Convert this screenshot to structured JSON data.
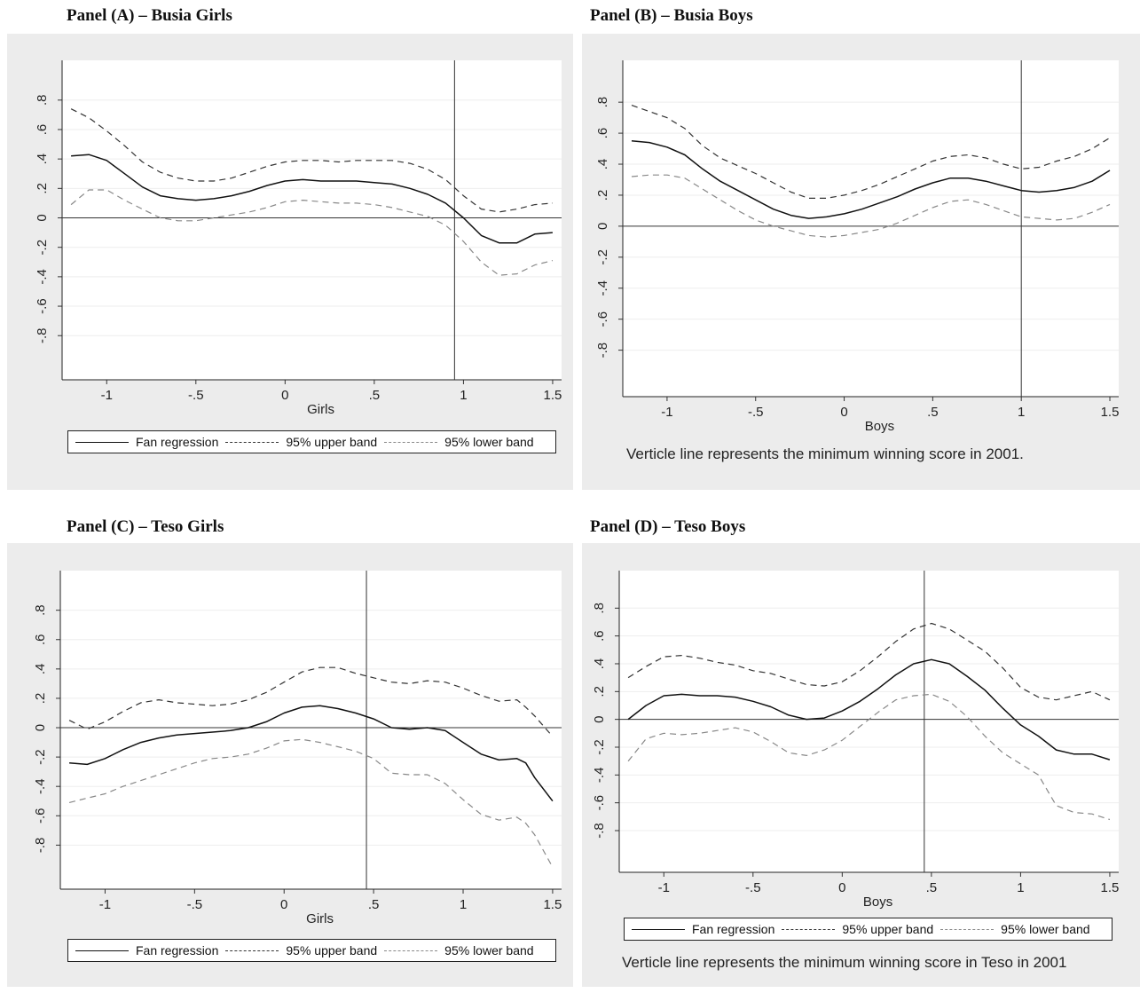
{
  "legend": {
    "fan": "Fan regression",
    "upper": "95% upper band",
    "lower": "95% lower band"
  },
  "notes": {
    "busia": "Verticle line represents the minimum winning score in 2001.",
    "teso": "Verticle line represents the minimum winning score in Teso in 2001"
  },
  "chart_data": [
    {
      "type": "line",
      "title": "Panel (A) – Busia Girls",
      "xlabel": "Girls",
      "xlim": [
        -1.25,
        1.55
      ],
      "ylim": [
        -1.1,
        1.07
      ],
      "x_ticks": [
        "-1",
        "-.5",
        "0",
        ".5",
        "1",
        "1.5"
      ],
      "y_ticks": [
        "-.8",
        "-.6",
        "-.4",
        "-.2",
        "0",
        ".2",
        ".4",
        ".6",
        ".8"
      ],
      "vline": 0.95,
      "series": [
        {
          "name": "Fan regression",
          "x": [
            -1.2,
            -1.1,
            -1.0,
            -0.9,
            -0.8,
            -0.7,
            -0.6,
            -0.5,
            -0.4,
            -0.3,
            -0.2,
            -0.1,
            0.0,
            0.1,
            0.2,
            0.3,
            0.4,
            0.5,
            0.6,
            0.7,
            0.8,
            0.9,
            1.0,
            1.1,
            1.2,
            1.3,
            1.4,
            1.5
          ],
          "y": [
            0.42,
            0.43,
            0.39,
            0.3,
            0.21,
            0.15,
            0.13,
            0.12,
            0.13,
            0.15,
            0.18,
            0.22,
            0.25,
            0.26,
            0.25,
            0.25,
            0.25,
            0.24,
            0.23,
            0.2,
            0.16,
            0.1,
            0.0,
            -0.12,
            -0.17,
            -0.17,
            -0.11,
            -0.1
          ]
        },
        {
          "name": "95% upper band",
          "x": [
            -1.2,
            -1.1,
            -1.0,
            -0.9,
            -0.8,
            -0.7,
            -0.6,
            -0.5,
            -0.4,
            -0.3,
            -0.2,
            -0.1,
            0.0,
            0.1,
            0.2,
            0.3,
            0.4,
            0.5,
            0.6,
            0.7,
            0.8,
            0.9,
            1.0,
            1.1,
            1.2,
            1.3,
            1.4,
            1.5
          ],
          "y": [
            0.74,
            0.68,
            0.59,
            0.49,
            0.38,
            0.31,
            0.27,
            0.25,
            0.25,
            0.27,
            0.31,
            0.35,
            0.38,
            0.39,
            0.39,
            0.38,
            0.39,
            0.39,
            0.39,
            0.37,
            0.33,
            0.26,
            0.15,
            0.06,
            0.04,
            0.06,
            0.09,
            0.1
          ]
        },
        {
          "name": "95% lower band",
          "x": [
            -1.2,
            -1.1,
            -1.0,
            -0.9,
            -0.8,
            -0.7,
            -0.6,
            -0.5,
            -0.4,
            -0.3,
            -0.2,
            -0.1,
            0.0,
            0.1,
            0.2,
            0.3,
            0.4,
            0.5,
            0.6,
            0.7,
            0.8,
            0.9,
            1.0,
            1.1,
            1.2,
            1.3,
            1.4,
            1.5
          ],
          "y": [
            0.09,
            0.19,
            0.19,
            0.12,
            0.06,
            0.0,
            -0.02,
            -0.02,
            0.0,
            0.02,
            0.04,
            0.07,
            0.11,
            0.12,
            0.11,
            0.1,
            0.1,
            0.09,
            0.07,
            0.04,
            0.01,
            -0.05,
            -0.16,
            -0.3,
            -0.39,
            -0.38,
            -0.32,
            -0.29
          ]
        }
      ]
    },
    {
      "type": "line",
      "title": "Panel (B) – Busia Boys",
      "xlabel": "Boys",
      "xlim": [
        -1.25,
        1.55
      ],
      "ylim": [
        -1.1,
        1.07
      ],
      "x_ticks": [
        "-1",
        "-.5",
        "0",
        ".5",
        "1",
        "1.5"
      ],
      "y_ticks": [
        "-.8",
        "-.6",
        "-.4",
        "-.2",
        "0",
        ".2",
        ".4",
        ".6",
        ".8"
      ],
      "vline": 1.0,
      "series": [
        {
          "name": "Fan regression",
          "x": [
            -1.2,
            -1.1,
            -1.0,
            -0.9,
            -0.8,
            -0.7,
            -0.6,
            -0.5,
            -0.4,
            -0.3,
            -0.2,
            -0.1,
            0.0,
            0.1,
            0.2,
            0.3,
            0.4,
            0.5,
            0.6,
            0.7,
            0.8,
            0.9,
            1.0,
            1.1,
            1.2,
            1.3,
            1.4,
            1.5
          ],
          "y": [
            0.55,
            0.54,
            0.51,
            0.46,
            0.37,
            0.29,
            0.23,
            0.17,
            0.11,
            0.07,
            0.05,
            0.06,
            0.08,
            0.11,
            0.15,
            0.19,
            0.24,
            0.28,
            0.31,
            0.31,
            0.29,
            0.26,
            0.23,
            0.22,
            0.23,
            0.25,
            0.29,
            0.36
          ]
        },
        {
          "name": "95% upper band",
          "x": [
            -1.2,
            -1.1,
            -1.0,
            -0.9,
            -0.8,
            -0.7,
            -0.6,
            -0.5,
            -0.4,
            -0.3,
            -0.2,
            -0.1,
            0.0,
            0.1,
            0.2,
            0.3,
            0.4,
            0.5,
            0.6,
            0.7,
            0.8,
            0.9,
            1.0,
            1.1,
            1.2,
            1.3,
            1.4,
            1.5
          ],
          "y": [
            0.78,
            0.74,
            0.7,
            0.63,
            0.52,
            0.44,
            0.39,
            0.34,
            0.28,
            0.22,
            0.18,
            0.18,
            0.2,
            0.23,
            0.27,
            0.32,
            0.37,
            0.42,
            0.45,
            0.46,
            0.44,
            0.4,
            0.37,
            0.38,
            0.42,
            0.45,
            0.5,
            0.57
          ]
        },
        {
          "name": "95% lower band",
          "x": [
            -1.2,
            -1.1,
            -1.0,
            -0.9,
            -0.8,
            -0.7,
            -0.6,
            -0.5,
            -0.4,
            -0.3,
            -0.2,
            -0.1,
            0.0,
            0.1,
            0.2,
            0.3,
            0.4,
            0.5,
            0.6,
            0.7,
            0.8,
            0.9,
            1.0,
            1.1,
            1.2,
            1.3,
            1.4,
            1.5
          ],
          "y": [
            0.32,
            0.33,
            0.33,
            0.31,
            0.24,
            0.17,
            0.1,
            0.04,
            0.0,
            -0.03,
            -0.06,
            -0.07,
            -0.06,
            -0.04,
            -0.02,
            0.02,
            0.07,
            0.12,
            0.16,
            0.17,
            0.14,
            0.1,
            0.06,
            0.05,
            0.04,
            0.05,
            0.09,
            0.14
          ]
        }
      ]
    },
    {
      "type": "line",
      "title": "Panel (C) – Teso Girls",
      "xlabel": "Girls",
      "xlim": [
        -1.25,
        1.55
      ],
      "ylim": [
        -1.1,
        1.07
      ],
      "x_ticks": [
        "-1",
        "-.5",
        "0",
        ".5",
        "1",
        "1.5"
      ],
      "y_ticks": [
        "-.8",
        "-.6",
        "-.4",
        "-.2",
        "0",
        ".2",
        ".4",
        ".6",
        ".8"
      ],
      "vline": 0.46,
      "series": [
        {
          "name": "Fan regression",
          "x": [
            -1.2,
            -1.1,
            -1.0,
            -0.9,
            -0.8,
            -0.7,
            -0.6,
            -0.5,
            -0.4,
            -0.3,
            -0.2,
            -0.1,
            0.0,
            0.1,
            0.2,
            0.3,
            0.4,
            0.5,
            0.6,
            0.7,
            0.8,
            0.9,
            1.0,
            1.1,
            1.2,
            1.3,
            1.35,
            1.4,
            1.5
          ],
          "y": [
            -0.24,
            -0.25,
            -0.21,
            -0.15,
            -0.1,
            -0.07,
            -0.05,
            -0.04,
            -0.03,
            -0.02,
            0.0,
            0.04,
            0.1,
            0.14,
            0.15,
            0.13,
            0.1,
            0.06,
            0.0,
            -0.01,
            0.0,
            -0.02,
            -0.1,
            -0.18,
            -0.22,
            -0.21,
            -0.24,
            -0.34,
            -0.5
          ]
        },
        {
          "name": "95% upper band",
          "x": [
            -1.2,
            -1.1,
            -1.0,
            -0.9,
            -0.8,
            -0.7,
            -0.6,
            -0.5,
            -0.4,
            -0.3,
            -0.2,
            -0.1,
            0.0,
            0.1,
            0.2,
            0.3,
            0.4,
            0.5,
            0.6,
            0.7,
            0.8,
            0.9,
            1.0,
            1.1,
            1.2,
            1.3,
            1.35,
            1.4,
            1.5
          ],
          "y": [
            0.05,
            -0.01,
            0.04,
            0.11,
            0.17,
            0.19,
            0.17,
            0.16,
            0.15,
            0.16,
            0.19,
            0.24,
            0.31,
            0.38,
            0.41,
            0.41,
            0.37,
            0.34,
            0.31,
            0.3,
            0.32,
            0.31,
            0.27,
            0.22,
            0.18,
            0.19,
            0.14,
            0.08,
            -0.06
          ]
        },
        {
          "name": "95% lower band",
          "x": [
            -1.2,
            -1.1,
            -1.0,
            -0.9,
            -0.8,
            -0.7,
            -0.6,
            -0.5,
            -0.4,
            -0.3,
            -0.2,
            -0.1,
            0.0,
            0.1,
            0.2,
            0.3,
            0.4,
            0.5,
            0.6,
            0.7,
            0.8,
            0.9,
            1.0,
            1.1,
            1.2,
            1.3,
            1.35,
            1.4,
            1.5
          ],
          "y": [
            -0.51,
            -0.48,
            -0.45,
            -0.4,
            -0.36,
            -0.32,
            -0.28,
            -0.24,
            -0.21,
            -0.2,
            -0.18,
            -0.14,
            -0.09,
            -0.08,
            -0.1,
            -0.13,
            -0.16,
            -0.21,
            -0.31,
            -0.32,
            -0.32,
            -0.38,
            -0.49,
            -0.59,
            -0.63,
            -0.61,
            -0.65,
            -0.73,
            -0.95
          ]
        }
      ]
    },
    {
      "type": "line",
      "title": "Panel (D) – Teso Boys",
      "xlabel": "Boys",
      "xlim": [
        -1.25,
        1.55
      ],
      "ylim": [
        -1.1,
        1.07
      ],
      "x_ticks": [
        "-1",
        "-.5",
        "0",
        ".5",
        "1",
        "1.5"
      ],
      "y_ticks": [
        "-.8",
        "-.6",
        "-.4",
        "-.2",
        "0",
        ".2",
        ".4",
        ".6",
        ".8"
      ],
      "vline": 0.46,
      "series": [
        {
          "name": "Fan regression",
          "x": [
            -1.2,
            -1.1,
            -1.0,
            -0.9,
            -0.8,
            -0.7,
            -0.6,
            -0.5,
            -0.4,
            -0.3,
            -0.2,
            -0.1,
            0.0,
            0.1,
            0.2,
            0.3,
            0.4,
            0.5,
            0.6,
            0.7,
            0.8,
            0.9,
            1.0,
            1.1,
            1.2,
            1.3,
            1.4,
            1.5
          ],
          "y": [
            0.0,
            0.1,
            0.17,
            0.18,
            0.17,
            0.17,
            0.16,
            0.13,
            0.09,
            0.03,
            0.0,
            0.01,
            0.06,
            0.13,
            0.22,
            0.32,
            0.4,
            0.43,
            0.4,
            0.31,
            0.21,
            0.08,
            -0.04,
            -0.12,
            -0.22,
            -0.25,
            -0.25,
            -0.29
          ]
        },
        {
          "name": "95% upper band",
          "x": [
            -1.2,
            -1.1,
            -1.0,
            -0.9,
            -0.8,
            -0.7,
            -0.6,
            -0.5,
            -0.4,
            -0.3,
            -0.2,
            -0.1,
            0.0,
            0.1,
            0.2,
            0.3,
            0.4,
            0.5,
            0.6,
            0.7,
            0.8,
            0.9,
            1.0,
            1.1,
            1.2,
            1.3,
            1.4,
            1.5
          ],
          "y": [
            0.3,
            0.38,
            0.45,
            0.46,
            0.44,
            0.41,
            0.39,
            0.35,
            0.33,
            0.29,
            0.25,
            0.24,
            0.27,
            0.35,
            0.45,
            0.56,
            0.65,
            0.69,
            0.65,
            0.57,
            0.49,
            0.37,
            0.23,
            0.16,
            0.14,
            0.17,
            0.2,
            0.14
          ]
        },
        {
          "name": "95% lower band",
          "x": [
            -1.2,
            -1.1,
            -1.0,
            -0.9,
            -0.8,
            -0.7,
            -0.6,
            -0.5,
            -0.4,
            -0.3,
            -0.2,
            -0.1,
            0.0,
            0.1,
            0.2,
            0.3,
            0.4,
            0.5,
            0.6,
            0.7,
            0.8,
            0.9,
            1.0,
            1.1,
            1.2,
            1.3,
            1.4,
            1.5
          ],
          "y": [
            -0.3,
            -0.14,
            -0.1,
            -0.11,
            -0.1,
            -0.08,
            -0.06,
            -0.09,
            -0.16,
            -0.24,
            -0.26,
            -0.22,
            -0.15,
            -0.05,
            0.05,
            0.14,
            0.17,
            0.18,
            0.13,
            0.02,
            -0.12,
            -0.24,
            -0.32,
            -0.4,
            -0.62,
            -0.67,
            -0.68,
            -0.72
          ]
        }
      ]
    }
  ]
}
